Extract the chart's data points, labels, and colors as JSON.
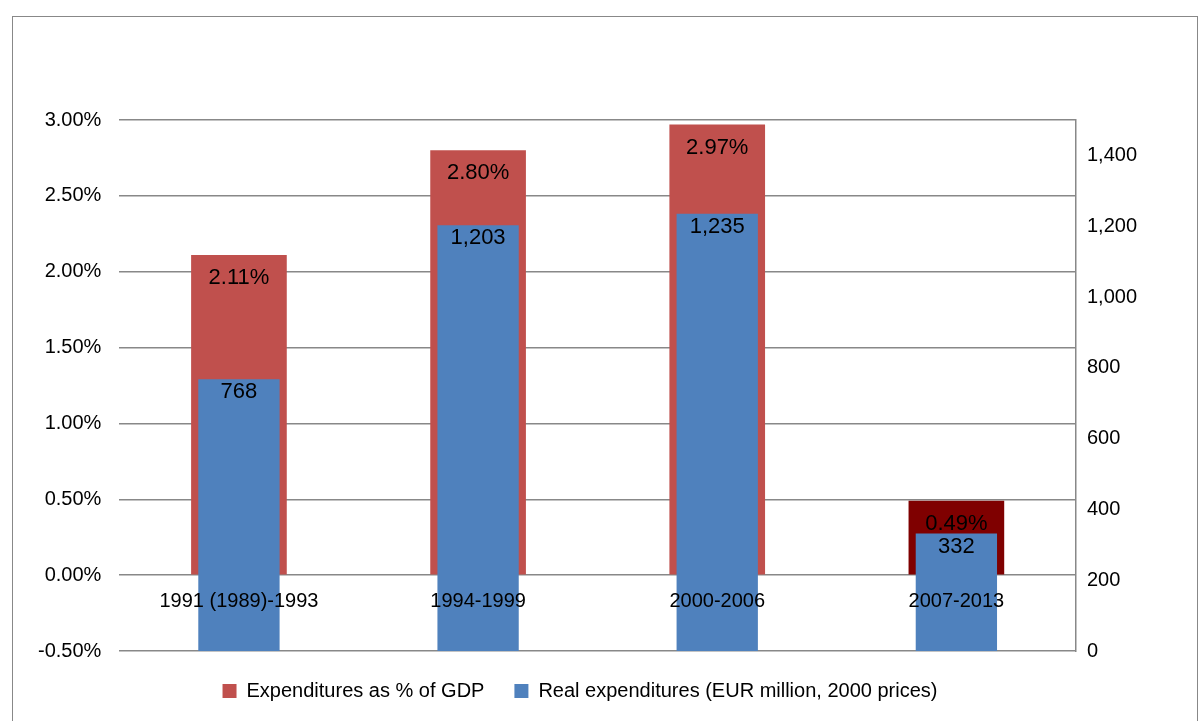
{
  "chart_data": {
    "type": "bar",
    "categories": [
      "1991 (1989)-1993",
      "1994-1999",
      "2000-2006",
      "2007-2013"
    ],
    "series": [
      {
        "name": "Expenditures as % of GDP",
        "color": "#c0504d",
        "colors": [
          "#c0504d",
          "#c0504d",
          "#c0504d",
          "#7f0000"
        ],
        "values": [
          2.11,
          2.8,
          2.97,
          0.49
        ],
        "value_labels": [
          "2.11%",
          "2.80%",
          "2.97%",
          "0.49%"
        ]
      },
      {
        "name": "Real expenditures (EUR million, 2000 prices)",
        "color": "#4f81bd",
        "axis": "y2",
        "values": [
          768,
          1203,
          1235,
          332
        ],
        "value_labels": [
          "768",
          "1,203",
          "1,235",
          "332"
        ]
      }
    ],
    "ylim": [
      -0.5,
      3.0
    ],
    "yticks": [
      {
        "value": -0.5,
        "label": "-0.50%"
      },
      {
        "value": 0,
        "label": "0.00%"
      },
      {
        "value": 0.5,
        "label": "0.50%"
      },
      {
        "value": 1.0,
        "label": "1.00%"
      },
      {
        "value": 1.5,
        "label": "1.50%"
      },
      {
        "value": 2.0,
        "label": "2.00%"
      },
      {
        "value": 2.5,
        "label": "2.50%"
      },
      {
        "value": 3.0,
        "label": "3.00%"
      }
    ],
    "y2lim": [
      0,
      1500
    ],
    "y2ticks": [
      0,
      200,
      400,
      600,
      800,
      {
        "value": 1000,
        "label": "1,000"
      },
      {
        "value": 1200,
        "label": "1,200"
      },
      {
        "value": 1400,
        "label": "1,400"
      }
    ],
    "grid": "y",
    "legend": "bottom"
  }
}
